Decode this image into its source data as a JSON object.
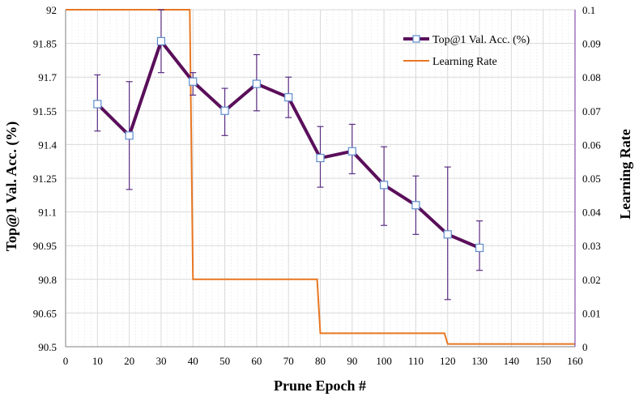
{
  "chart_data": {
    "type": "line",
    "xlabel": "Prune Epoch #",
    "ylabel_left": "Top@1 Val. Acc. (%)",
    "ylabel_right": "Learning Rate",
    "xlim": [
      0,
      160
    ],
    "x_ticks": [
      0,
      10,
      20,
      30,
      40,
      50,
      60,
      70,
      80,
      90,
      100,
      110,
      120,
      130,
      140,
      150,
      160
    ],
    "ylim_left": [
      90.5,
      92
    ],
    "y_ticks_left": [
      "90.5",
      "90.65",
      "90.8",
      "90.95",
      "91.1",
      "91.25",
      "91.4",
      "91.55",
      "91.7",
      "91.85",
      "92"
    ],
    "ylim_right": [
      0,
      0.1
    ],
    "y_ticks_right": [
      "0",
      "0.01",
      "0.02",
      "0.03",
      "0.04",
      "0.05",
      "0.06",
      "0.07",
      "0.08",
      "0.09",
      "0.1"
    ],
    "grid": true,
    "legend_position": "top-right",
    "series": [
      {
        "name": "Top@1 Val. Acc. (%)",
        "axis": "left",
        "color": "#5a0f5a",
        "marker": "square",
        "x": [
          10,
          20,
          30,
          40,
          50,
          60,
          70,
          80,
          90,
          100,
          110,
          120,
          130
        ],
        "y": [
          91.58,
          91.44,
          91.86,
          91.68,
          91.55,
          91.67,
          91.61,
          91.34,
          91.37,
          91.22,
          91.13,
          91.0,
          90.94
        ],
        "err_low": [
          91.46,
          91.2,
          91.72,
          91.62,
          91.44,
          91.55,
          91.52,
          91.21,
          91.27,
          91.04,
          91.0,
          90.71,
          90.84
        ],
        "err_high": [
          91.71,
          91.68,
          92.0,
          91.72,
          91.65,
          91.8,
          91.7,
          91.48,
          91.49,
          91.39,
          91.26,
          91.3,
          91.06
        ]
      },
      {
        "name": "Learning Rate",
        "axis": "right",
        "color": "#e87722",
        "x": [
          0,
          39,
          40,
          79,
          80,
          119,
          120,
          160
        ],
        "y": [
          0.1,
          0.1,
          0.02,
          0.02,
          0.004,
          0.004,
          0.0008,
          0.0008
        ]
      }
    ]
  }
}
